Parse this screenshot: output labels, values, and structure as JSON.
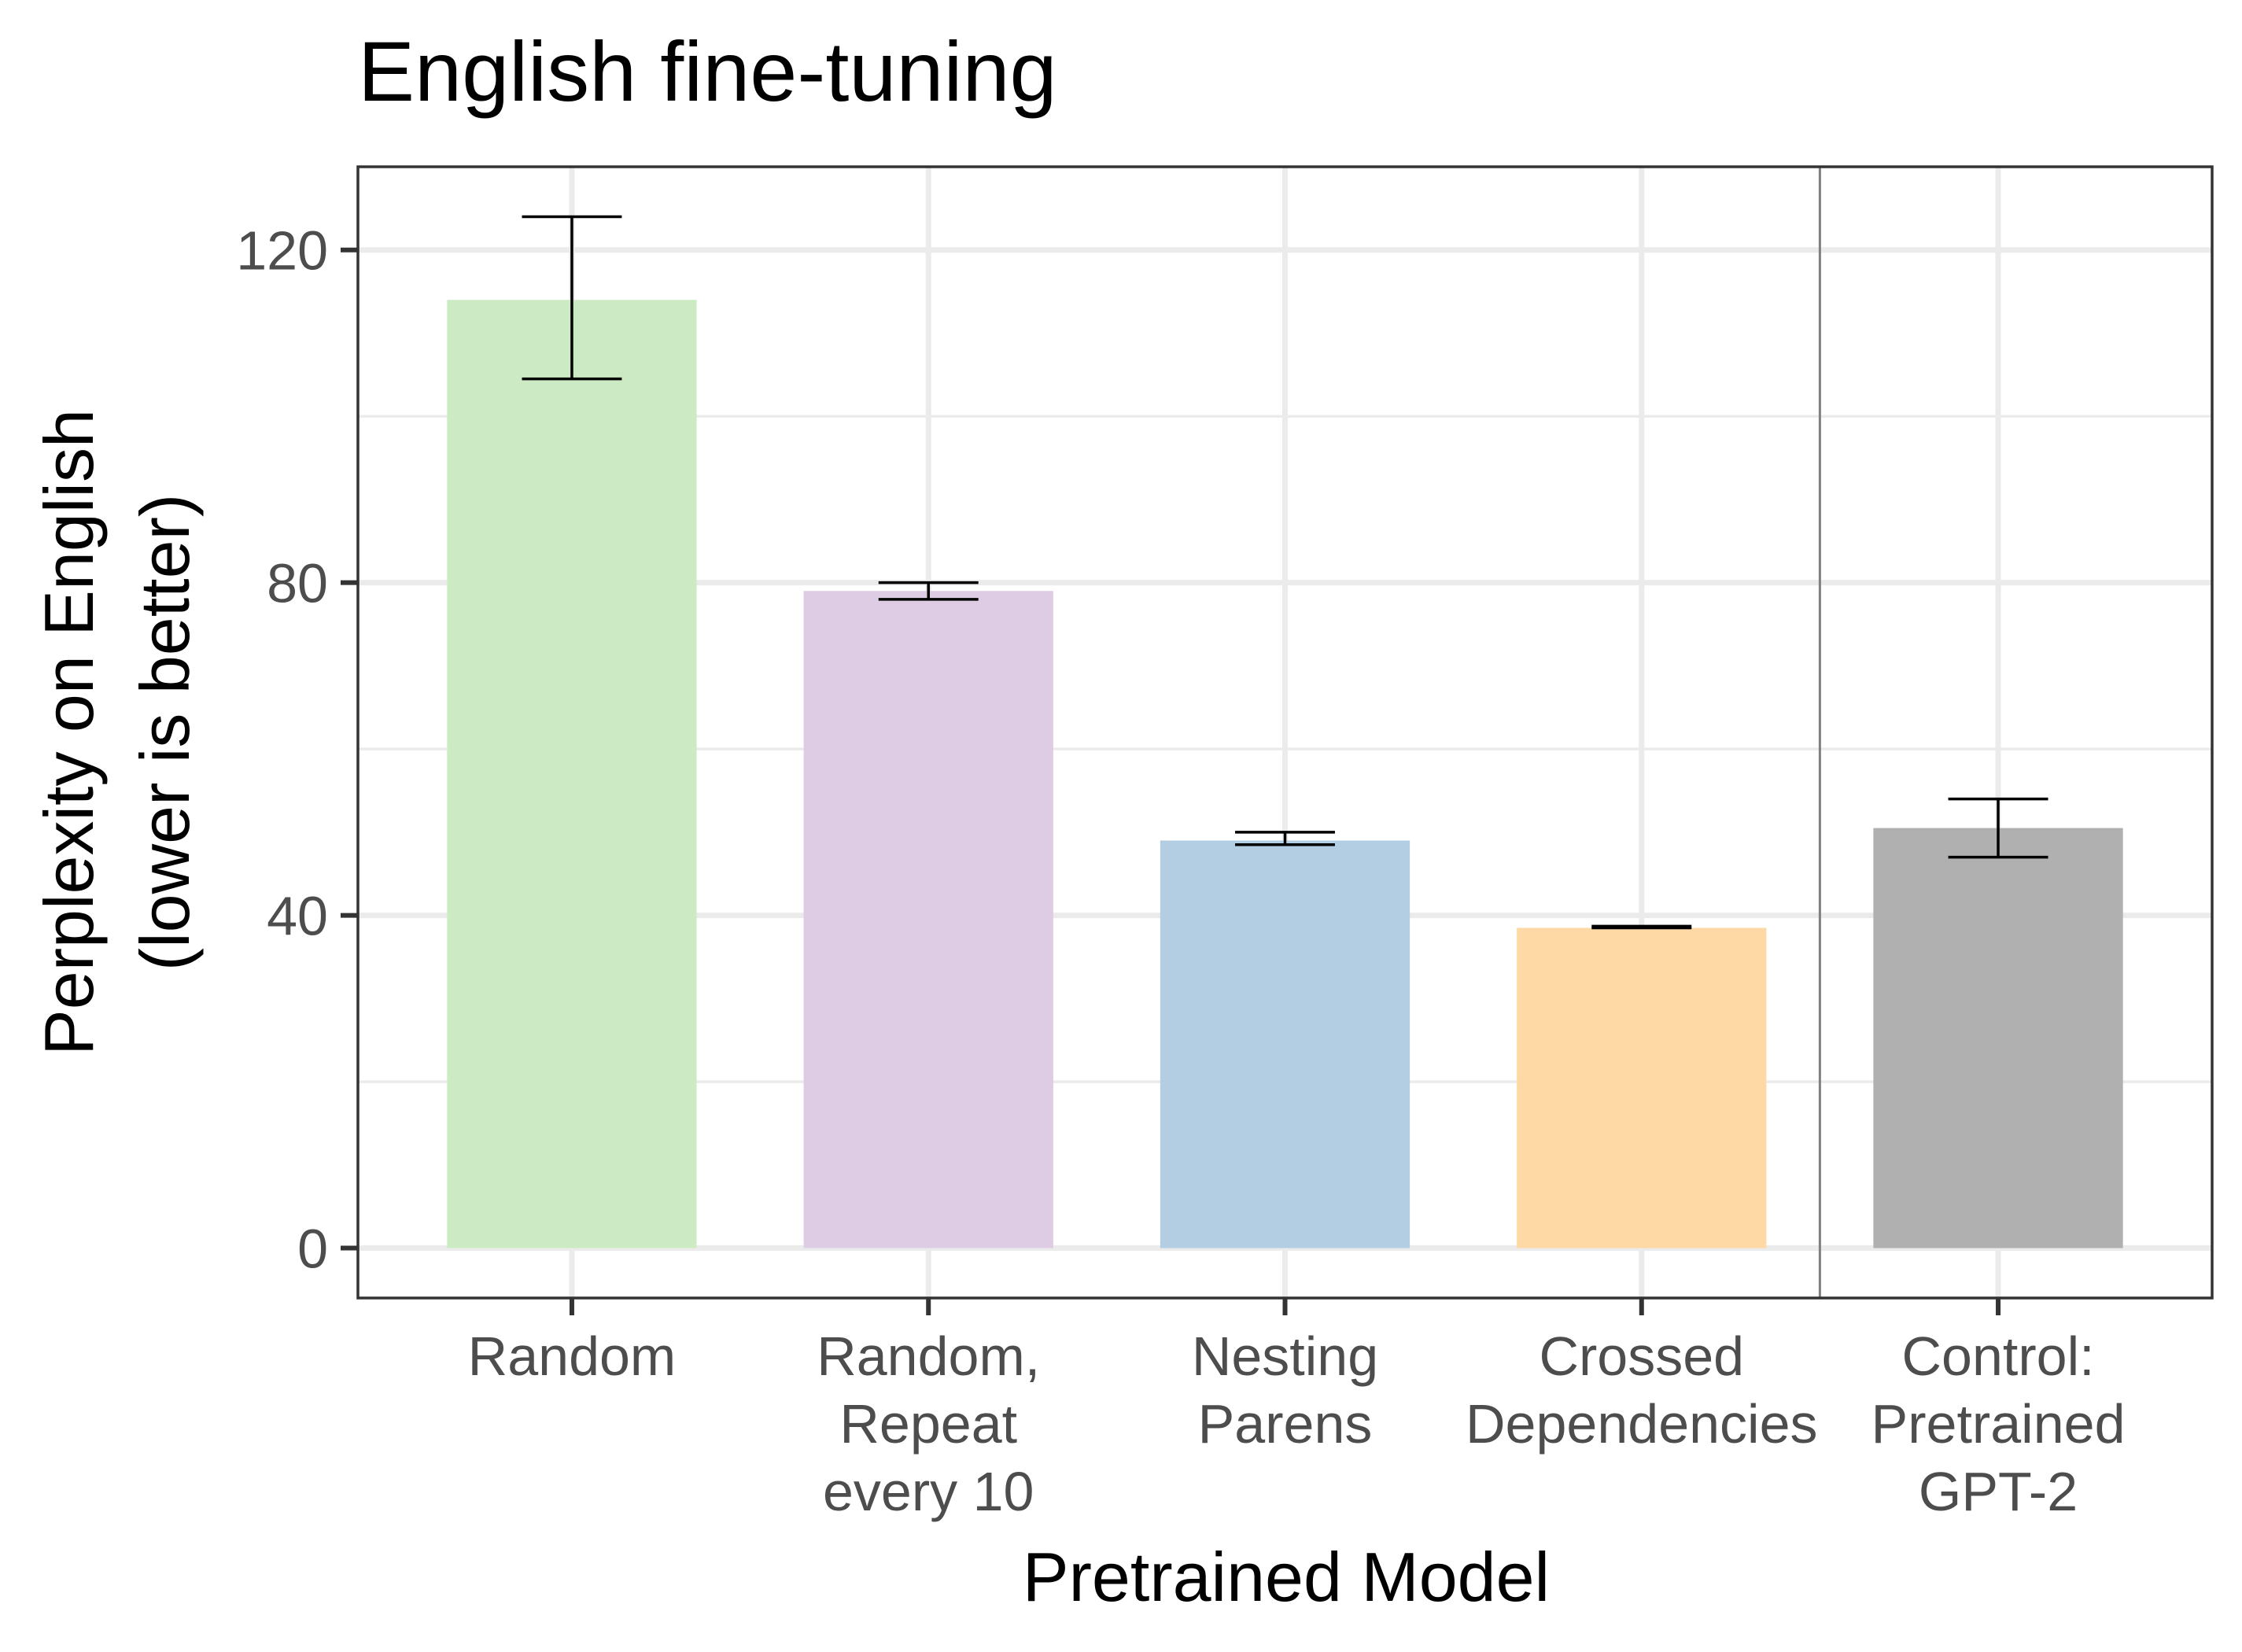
{
  "chart_data": {
    "type": "bar",
    "title": "English fine-tuning",
    "xlabel": "Pretrained Model",
    "ylabel": [
      "Perplexity on English",
      "(lower is better)"
    ],
    "ylim": [
      -6,
      130
    ],
    "yticks": [
      0,
      40,
      80,
      120
    ],
    "ytick_labels": [
      "0",
      "40",
      "80",
      "120"
    ],
    "grid": true,
    "legend": "none",
    "categories": [
      {
        "label": [
          "Random"
        ],
        "value": 114,
        "err_low": 104.5,
        "err_high": 124,
        "color": "#ccebc5"
      },
      {
        "label": [
          "Random,",
          "Repeat",
          "every 10"
        ],
        "value": 79,
        "err_low": 78,
        "err_high": 80,
        "color": "#decbe4"
      },
      {
        "label": [
          "Nesting",
          "Parens"
        ],
        "value": 49,
        "err_low": 48.5,
        "err_high": 50,
        "color": "#b3cde3"
      },
      {
        "label": [
          "Crossed",
          "Dependencies"
        ],
        "value": 38.5,
        "err_low": 38.5,
        "err_high": 38.7,
        "color": "#fed9a6"
      },
      {
        "label": [
          "Control:",
          "Pretrained",
          "GPT-2"
        ],
        "value": 50.5,
        "err_low": 47,
        "err_high": 54,
        "color": "#b0b0b0"
      }
    ],
    "divider_after_category": 4
  }
}
